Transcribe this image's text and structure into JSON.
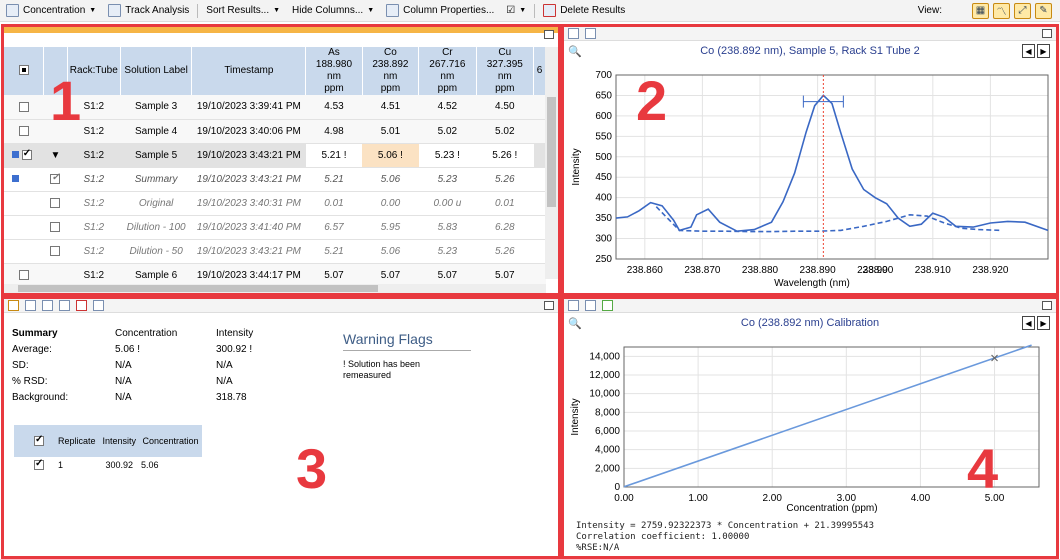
{
  "toolbar": {
    "concentration": "Concentration",
    "track": "Track Analysis",
    "sort": "Sort Results...",
    "hide": "Hide Columns...",
    "props": "Column Properties...",
    "delete": "Delete Results",
    "view": "View:"
  },
  "panels": {
    "p1": "1",
    "p2": "2",
    "p3": "3",
    "p4": "4"
  },
  "table": {
    "headers": {
      "rack": "Rack:Tube",
      "label": "Solution Label",
      "time": "Timestamp",
      "as": [
        "As",
        "188.980 nm",
        "ppm"
      ],
      "co": [
        "Co",
        "238.892 nm",
        "ppm"
      ],
      "cr": [
        "Cr",
        "267.716 nm",
        "ppm"
      ],
      "cu": [
        "Cu",
        "327.395 nm",
        "ppm"
      ],
      "more": "6"
    },
    "rows": [
      {
        "rack": "S1:2",
        "label": "Sample 3",
        "time": "19/10/2023 3:39:41 PM",
        "as": "4.53",
        "co": "4.51",
        "cr": "4.52",
        "cu": "4.50"
      },
      {
        "rack": "S1:2",
        "label": "Sample 4",
        "time": "19/10/2023 3:40:06 PM",
        "as": "4.98",
        "co": "5.01",
        "cr": "5.02",
        "cu": "5.02"
      },
      {
        "rack": "S1:2",
        "label": "Sample 5",
        "time": "19/10/2023 3:43:21 PM",
        "as": "5.21 !",
        "co": "5.06 !",
        "cr": "5.23 !",
        "cu": "5.26 !"
      },
      {
        "rack": "S1:2",
        "label": "Summary",
        "time": "19/10/2023 3:43:21 PM",
        "as": "5.21",
        "co": "5.06",
        "cr": "5.23",
        "cu": "5.26"
      },
      {
        "rack": "S1:2",
        "label": "Original",
        "time": "19/10/2023 3:40:31 PM",
        "as": "0.01",
        "co": "0.00",
        "cr": "0.00 u",
        "cu": "0.01"
      },
      {
        "rack": "S1:2",
        "label": "Dilution - 100",
        "time": "19/10/2023 3:41:40 PM",
        "as": "6.57",
        "co": "5.95",
        "cr": "5.83",
        "cu": "6.28"
      },
      {
        "rack": "S1:2",
        "label": "Dilution - 50",
        "time": "19/10/2023 3:43:21 PM",
        "as": "5.21",
        "co": "5.06",
        "cr": "5.23",
        "cu": "5.26"
      },
      {
        "rack": "S1:2",
        "label": "Sample 6",
        "time": "19/10/2023 3:44:17 PM",
        "as": "5.07",
        "co": "5.07",
        "cr": "5.07",
        "cu": "5.07"
      }
    ]
  },
  "spectrum": {
    "title": "Co (238.892 nm), Sample 5, Rack S1 Tube 2",
    "xlabel": "Wavelength (nm)",
    "ylabel": "Intensity"
  },
  "summary": {
    "header": [
      "Summary",
      "Concentration",
      "Intensity"
    ],
    "rows": [
      [
        "Average:",
        "5.06 !",
        "300.92 !"
      ],
      [
        "SD:",
        "N/A",
        "N/A"
      ],
      [
        "% RSD:",
        "N/A",
        "N/A"
      ],
      [
        "Background:",
        "N/A",
        "318.78"
      ]
    ],
    "warning_title": "Warning Flags",
    "warning_text": "! Solution has been remeasured",
    "replicate_headers": [
      "Replicate",
      "Intensity",
      "Concentration"
    ],
    "replicate_row": [
      "1",
      "300.92",
      "5.06"
    ]
  },
  "calibration": {
    "title": "Co (238.892 nm) Calibration",
    "xlabel": "Concentration (ppm)",
    "ylabel": "Intensity",
    "eq1": "Intensity = 2759.92322373 * Concentration + 21.39995543",
    "eq2": "Correlation coefficient: 1.00000",
    "eq3": "%RSE:N/A"
  },
  "chart_data": [
    {
      "type": "line",
      "title": "Co (238.892 nm), Sample 5, Rack S1 Tube 2",
      "xlabel": "Wavelength (nm)",
      "ylabel": "Intensity",
      "xlim": [
        238.855,
        238.93
      ],
      "ylim": [
        250,
        700
      ],
      "xticks": [
        "238.860",
        "238.870",
        "238.880",
        "238.890",
        "238.900",
        "238.910",
        "238.920",
        "238.9"
      ],
      "yticks": [
        "250",
        "300",
        "350",
        "400",
        "450",
        "500",
        "550",
        "600",
        "650",
        "700"
      ],
      "peak_marker_x": 238.891,
      "series": [
        {
          "style": "solid",
          "x": [
            238.855,
            238.857,
            238.859,
            238.861,
            238.863,
            238.865,
            238.866,
            238.868,
            238.869,
            238.871,
            238.873,
            238.876,
            238.879,
            238.882,
            238.884,
            238.886,
            238.888,
            238.8895,
            238.891,
            238.8925,
            238.894,
            238.896,
            238.898,
            238.9,
            238.902,
            238.904,
            238.906,
            238.908,
            238.91,
            238.912,
            238.914,
            238.917,
            238.92,
            238.923,
            238.926,
            238.93
          ],
          "y": [
            350,
            353,
            368,
            388,
            380,
            345,
            320,
            328,
            358,
            372,
            340,
            318,
            322,
            340,
            390,
            460,
            560,
            625,
            650,
            630,
            560,
            470,
            420,
            400,
            385,
            350,
            330,
            335,
            362,
            352,
            330,
            328,
            338,
            342,
            340,
            320
          ]
        },
        {
          "style": "dashed",
          "x": [
            238.862,
            238.866,
            238.87,
            238.874,
            238.878,
            238.882,
            238.886,
            238.89,
            238.894,
            238.898,
            238.902,
            238.906,
            238.909,
            238.912,
            238.915,
            238.918,
            238.922
          ],
          "y": [
            378,
            320,
            318,
            318,
            317,
            317,
            318,
            318,
            320,
            330,
            342,
            358,
            355,
            338,
            325,
            322,
            320
          ]
        }
      ]
    },
    {
      "type": "line",
      "title": "Co (238.892 nm) Calibration",
      "xlabel": "Concentration (ppm)",
      "ylabel": "Intensity",
      "xlim": [
        0,
        5.6
      ],
      "ylim": [
        0,
        15000
      ],
      "xticks": [
        "0.00",
        "1.00",
        "2.00",
        "3.00",
        "4.00",
        "5.00"
      ],
      "yticks": [
        "0",
        "2,000",
        "4,000",
        "6,000",
        "8,000",
        "10,000",
        "12,000",
        "14,000"
      ],
      "series": [
        {
          "style": "solid",
          "x": [
            0,
            5.5
          ],
          "y": [
            21.4,
            15200.96
          ]
        }
      ],
      "points": [
        {
          "x": 5.0,
          "y": 13821
        }
      ]
    }
  ]
}
